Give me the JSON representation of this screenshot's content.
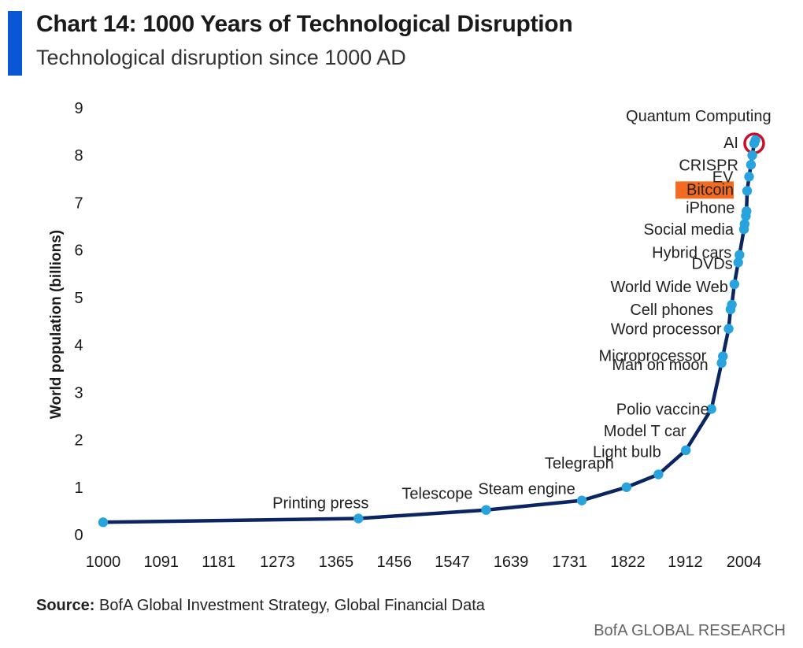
{
  "header": {
    "title": "Chart 14: 1000 Years of Technological Disruption",
    "subtitle": "Technological disruption since 1000 AD"
  },
  "footer": {
    "source_label": "Source:",
    "source_text": "BofA Global Investment Strategy, Global Financial Data",
    "brand": "BofA GLOBAL RESEARCH"
  },
  "colors": {
    "accent": "#0a57d6",
    "line": "#0b2462",
    "point": "#29a3de",
    "highlight_fill": "#f26b21",
    "circle": "#c8102e"
  },
  "chart_data": {
    "type": "line",
    "title": "Chart 14: 1000 Years of Technological Disruption",
    "subtitle": "Technological disruption since 1000 AD",
    "xlabel": "",
    "ylabel": "World population (billions)",
    "xlim": [
      1000,
      2050
    ],
    "ylim": [
      0,
      9
    ],
    "x_ticks": [
      "1000",
      "1091",
      "1181",
      "1273",
      "1365",
      "1456",
      "1547",
      "1639",
      "1731",
      "1822",
      "1912",
      "2004"
    ],
    "x_tick_values": [
      1000,
      1091,
      1181,
      1273,
      1365,
      1456,
      1547,
      1639,
      1731,
      1822,
      1912,
      2004
    ],
    "y_ticks": [
      0,
      1,
      2,
      3,
      4,
      5,
      6,
      7,
      8,
      9
    ],
    "grid": false,
    "series": [
      {
        "values": [
          {
            "x": 1000,
            "y": 0.26,
            "label": ""
          },
          {
            "x": 1400,
            "y": 0.34,
            "label": "Printing press"
          },
          {
            "x": 1600,
            "y": 0.52,
            "label": "Telescope"
          },
          {
            "x": 1750,
            "y": 0.72,
            "label": "Steam engine"
          },
          {
            "x": 1820,
            "y": 1.0,
            "label": "Telegraph"
          },
          {
            "x": 1870,
            "y": 1.27,
            "label": "Light bulb"
          },
          {
            "x": 1913,
            "y": 1.78,
            "label": "Model T car"
          },
          {
            "x": 1953,
            "y": 2.65,
            "label": "Polio vaccine"
          },
          {
            "x": 1969,
            "y": 3.62,
            "label": "Man on moon"
          },
          {
            "x": 1971,
            "y": 3.76,
            "label": "Microprocessor"
          },
          {
            "x": 1980,
            "y": 4.34,
            "label": "Word processor"
          },
          {
            "x": 1983,
            "y": 4.75,
            "label": "Cell phones"
          },
          {
            "x": 1985,
            "y": 4.85,
            "label": ""
          },
          {
            "x": 1989,
            "y": 5.28,
            "label": "World Wide Web"
          },
          {
            "x": 1995,
            "y": 5.74,
            "label": "DVDs"
          },
          {
            "x": 1997,
            "y": 5.9,
            "label": "Hybrid cars"
          },
          {
            "x": 2004,
            "y": 6.44,
            "label": "Social media"
          },
          {
            "x": 2005,
            "y": 6.55,
            "label": ""
          },
          {
            "x": 2007,
            "y": 6.72,
            "label": "iPhone"
          },
          {
            "x": 2008,
            "y": 6.82,
            "label": ""
          },
          {
            "x": 2009,
            "y": 7.25,
            "label": "Bitcoin"
          },
          {
            "x": 2012,
            "y": 7.55,
            "label": "EV"
          },
          {
            "x": 2015,
            "y": 7.8,
            "label": "CRISPR"
          },
          {
            "x": 2017,
            "y": 8.0,
            "label": ""
          },
          {
            "x": 2020,
            "y": 8.25,
            "label": "AI"
          },
          {
            "x": 2022,
            "y": 8.32,
            "label": "Quantum Computing"
          }
        ]
      }
    ],
    "highlighted": "Bitcoin",
    "circled": "AI"
  }
}
